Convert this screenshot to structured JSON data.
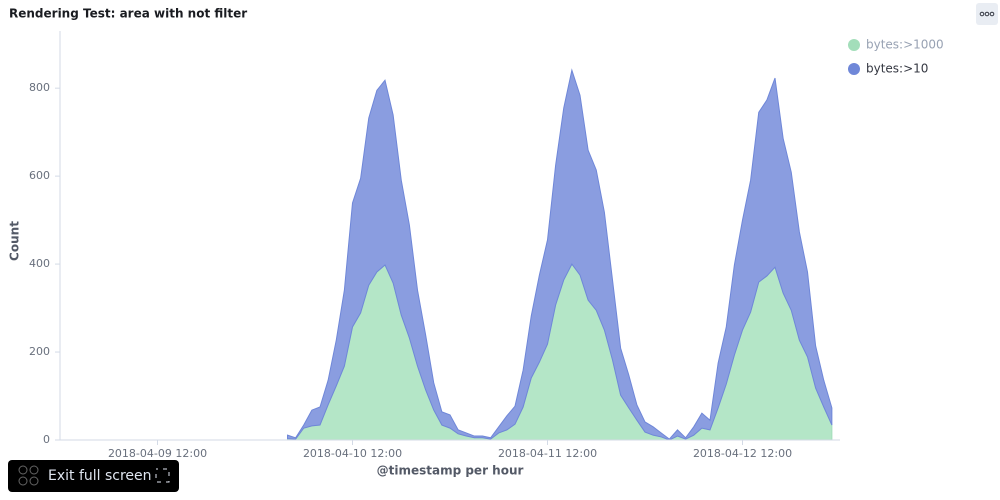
{
  "chart_data": {
    "type": "area",
    "title": "Rendering Test: area with not filter",
    "xlabel": "@timestamp per hour",
    "ylabel": "Count",
    "button": "Exit full screen",
    "stacked": true,
    "legend": "top-right",
    "x": [
      "2018-04-10 04:00",
      "2018-04-10 05:00",
      "2018-04-10 06:00",
      "2018-04-10 07:00",
      "2018-04-10 08:00",
      "2018-04-10 09:00",
      "2018-04-10 10:00",
      "2018-04-10 11:00",
      "2018-04-10 12:00",
      "2018-04-10 13:00",
      "2018-04-10 14:00",
      "2018-04-10 15:00",
      "2018-04-10 16:00",
      "2018-04-10 17:00",
      "2018-04-10 18:00",
      "2018-04-10 19:00",
      "2018-04-10 20:00",
      "2018-04-10 21:00",
      "2018-04-10 22:00",
      "2018-04-10 23:00",
      "2018-04-11 00:00",
      "2018-04-11 01:00",
      "2018-04-11 02:00",
      "2018-04-11 03:00",
      "2018-04-11 04:00",
      "2018-04-11 05:00",
      "2018-04-11 06:00",
      "2018-04-11 07:00",
      "2018-04-11 08:00",
      "2018-04-11 09:00",
      "2018-04-11 10:00",
      "2018-04-11 11:00",
      "2018-04-11 12:00",
      "2018-04-11 13:00",
      "2018-04-11 14:00",
      "2018-04-11 15:00",
      "2018-04-11 16:00",
      "2018-04-11 17:00",
      "2018-04-11 18:00",
      "2018-04-11 19:00",
      "2018-04-11 20:00",
      "2018-04-11 21:00",
      "2018-04-11 22:00",
      "2018-04-11 23:00",
      "2018-04-12 00:00",
      "2018-04-12 01:00",
      "2018-04-12 02:00",
      "2018-04-12 03:00",
      "2018-04-12 04:00",
      "2018-04-12 05:00",
      "2018-04-12 06:00",
      "2018-04-12 07:00",
      "2018-04-12 08:00",
      "2018-04-12 09:00",
      "2018-04-12 10:00",
      "2018-04-12 11:00",
      "2018-04-12 12:00",
      "2018-04-12 13:00",
      "2018-04-12 14:00",
      "2018-04-12 15:00",
      "2018-04-12 16:00",
      "2018-04-12 17:00",
      "2018-04-12 18:00",
      "2018-04-12 19:00",
      "2018-04-12 20:00",
      "2018-04-12 21:00",
      "2018-04-12 22:00",
      "2018-04-12 23:00"
    ],
    "series": [
      {
        "name": "bytes:>1000",
        "color": "#b4e6c7",
        "legend_color": "#a3deba",
        "values": [
          3,
          2,
          27,
          32,
          34,
          80,
          123,
          168,
          257,
          289,
          352,
          382,
          398,
          357,
          284,
          232,
          168,
          114,
          68,
          34,
          27,
          14,
          9,
          5,
          5,
          2,
          16,
          23,
          36,
          75,
          141,
          177,
          218,
          307,
          364,
          400,
          375,
          318,
          295,
          250,
          182,
          102,
          73,
          45,
          18,
          11,
          7,
          0,
          9,
          2,
          11,
          27,
          23,
          73,
          127,
          193,
          250,
          291,
          359,
          373,
          393,
          334,
          295,
          227,
          189,
          118,
          75,
          34
        ]
      },
      {
        "name": "bytes:>10",
        "color": "#8a9de0",
        "legend_color": "#6f87d8",
        "values": [
          8,
          3,
          7,
          36,
          41,
          56,
          104,
          173,
          282,
          306,
          380,
          413,
          420,
          382,
          307,
          257,
          173,
          125,
          62,
          30,
          30,
          9,
          7,
          4,
          4,
          3,
          14,
          32,
          41,
          84,
          141,
          198,
          237,
          318,
          391,
          441,
          409,
          341,
          319,
          268,
          182,
          107,
          75,
          35,
          23,
          19,
          9,
          2,
          14,
          3,
          19,
          34,
          22,
          102,
          130,
          205,
          250,
          300,
          386,
          400,
          430,
          352,
          314,
          246,
          193,
          96,
          61,
          39
        ]
      }
    ],
    "xlim": [
      "2018-04-09 00:00",
      "2018-04-13 00:00"
    ],
    "xticks": [
      "2018-04-09 12:00",
      "2018-04-10 12:00",
      "2018-04-11 12:00",
      "2018-04-12 12:00"
    ],
    "ylim": [
      0,
      930
    ],
    "yticks": [
      0,
      200,
      400,
      600,
      800
    ],
    "grid": false
  }
}
